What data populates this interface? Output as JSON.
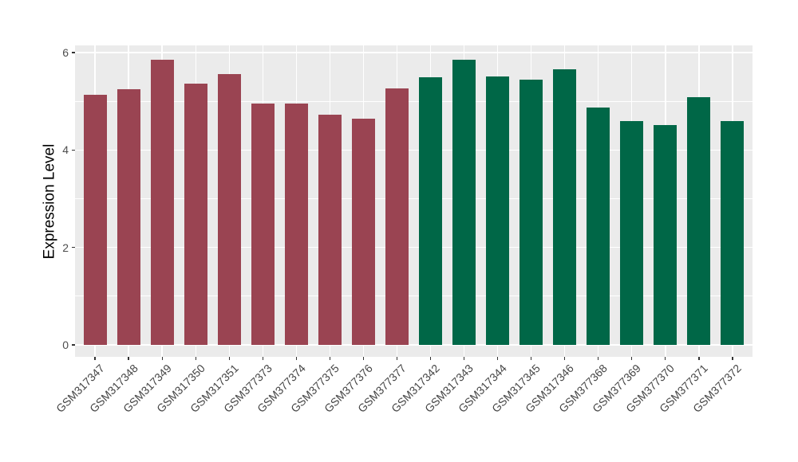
{
  "figure": {
    "background_color": "#FFFFFF",
    "panel_background_color": "#EBEBEB",
    "gridline_color": "#FFFFFF",
    "axis_text_color": "#4D4D4D",
    "axis_title_color": "#000000",
    "group_colors": {
      "group1": "#9A4452",
      "group2": "#006747"
    }
  },
  "chart_data": {
    "type": "bar",
    "title": "",
    "xlabel": "",
    "ylabel": "Expression Level",
    "ylim": [
      0,
      6.15
    ],
    "yticks": [
      0,
      2,
      4,
      6
    ],
    "yminor": [
      1,
      3,
      5
    ],
    "grid": "on",
    "legend": "none",
    "categories": [
      "GSM317347",
      "GSM317348",
      "GSM317349",
      "GSM317350",
      "GSM317351",
      "GSM377373",
      "GSM377374",
      "GSM377375",
      "GSM377376",
      "GSM377377",
      "GSM317342",
      "GSM317343",
      "GSM317344",
      "GSM317345",
      "GSM317346",
      "GSM377368",
      "GSM377369",
      "GSM377370",
      "GSM377371",
      "GSM377372"
    ],
    "values": [
      5.14,
      5.25,
      5.86,
      5.37,
      5.56,
      4.96,
      4.95,
      4.72,
      4.65,
      5.26,
      5.5,
      5.85,
      5.51,
      5.44,
      5.65,
      4.87,
      4.59,
      4.51,
      5.08,
      4.6
    ],
    "bar_colors": [
      "#9A4452",
      "#9A4452",
      "#9A4452",
      "#9A4452",
      "#9A4452",
      "#9A4452",
      "#9A4452",
      "#9A4452",
      "#9A4452",
      "#9A4452",
      "#006747",
      "#006747",
      "#006747",
      "#006747",
      "#006747",
      "#006747",
      "#006747",
      "#006747",
      "#006747",
      "#006747"
    ]
  }
}
